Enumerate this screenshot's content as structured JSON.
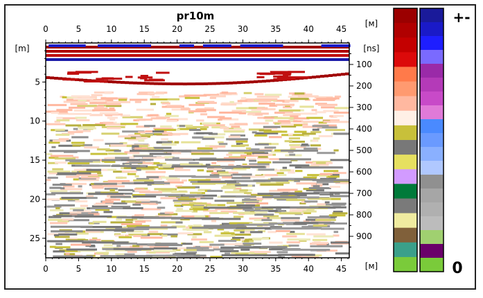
{
  "chart_data": {
    "type": "heatmap",
    "title": "pr10m",
    "x_unit_top": "[м]",
    "x_unit_bottom": "[м]",
    "y_unit_left": "[m]",
    "y_unit_right": "[ns]",
    "x_ticks": [
      0,
      5,
      10,
      15,
      20,
      25,
      30,
      35,
      40,
      45
    ],
    "xlim": [
      0,
      46.2
    ],
    "y_ticks_left": [
      5,
      10,
      15,
      20,
      25
    ],
    "ylim_depth_m": [
      0,
      27.5
    ],
    "y_ticks_right": [
      100,
      200,
      300,
      400,
      500,
      600,
      700,
      800,
      900
    ],
    "ylim_time_ns": [
      0,
      1000
    ],
    "legend_top_label": "+-",
    "legend_bottom_label": "0",
    "scale_positive": [
      "#9b0000",
      "#b00000",
      "#c40000",
      "#dc0a0a",
      "#ff7a4a",
      "#ff9a70",
      "#ffb8a0",
      "#fff0e6",
      "#c8c03a",
      "#787878",
      "#e6e060",
      "#d29bff",
      "#007a3a",
      "#7a7a7a",
      "#f0eca0",
      "#80603a",
      "#3aa08a",
      "#7acb3a"
    ],
    "scale_negative": [
      "#1a1a9a",
      "#1a1ac8",
      "#1e1eff",
      "#7a6aff",
      "#9a2aa8",
      "#b43ab8",
      "#c84ac8",
      "#e07ad8",
      "#4a8aff",
      "#6a9aff",
      "#8ab0ff",
      "#b0c8ff",
      "#909090",
      "#a6a6a6",
      "#b0b0b0",
      "#bcbcbc",
      "#a0d070",
      "#6a006a",
      "#7acb3a"
    ]
  }
}
